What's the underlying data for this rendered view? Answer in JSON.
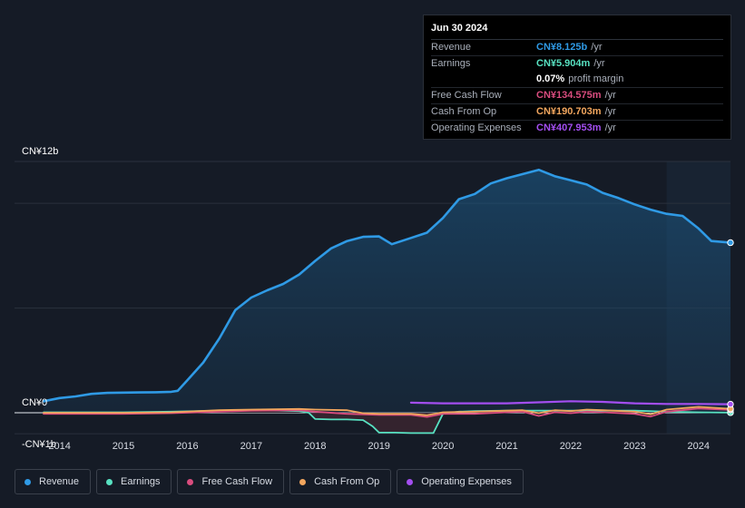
{
  "tooltip": {
    "date": "Jun 30 2024",
    "rows": [
      {
        "label": "Revenue",
        "value": "CN¥8.125b",
        "unit": "/yr",
        "color": "#2f9ae5"
      },
      {
        "label": "Earnings",
        "value": "CN¥5.904m",
        "unit": "/yr",
        "color": "#58e1c1"
      },
      {
        "label": "",
        "value": "0.07%",
        "unit": "profit margin",
        "color": "#ffffff"
      },
      {
        "label": "Free Cash Flow",
        "value": "CN¥134.575m",
        "unit": "/yr",
        "color": "#d94c7e"
      },
      {
        "label": "Cash From Op",
        "value": "CN¥190.703m",
        "unit": "/yr",
        "color": "#f2a65e"
      },
      {
        "label": "Operating Expenses",
        "value": "CN¥407.953m",
        "unit": "/yr",
        "color": "#a34ef0"
      }
    ]
  },
  "legend": [
    {
      "label": "Revenue",
      "color": "#2f9ae5",
      "icon": "revenue-dot-icon"
    },
    {
      "label": "Earnings",
      "color": "#58e1c1",
      "icon": "earnings-dot-icon"
    },
    {
      "label": "Free Cash Flow",
      "color": "#d94c7e",
      "icon": "fcf-dot-icon"
    },
    {
      "label": "Cash From Op",
      "color": "#f2a65e",
      "icon": "cfo-dot-icon"
    },
    {
      "label": "Operating Expenses",
      "color": "#a34ef0",
      "icon": "opex-dot-icon"
    }
  ],
  "chart_data": {
    "type": "line",
    "title": "",
    "xlabel": "",
    "ylabel": "",
    "units": "CN¥ billions",
    "ylim": [
      -1,
      12
    ],
    "xlim": [
      2013.75,
      2024.5
    ],
    "y_tick_labels": [
      {
        "value": 12,
        "label": "CN¥12b"
      },
      {
        "value": 0,
        "label": "CN¥0"
      },
      {
        "value": -1,
        "label": "-CN¥1b"
      }
    ],
    "x_tick_labels": [
      "2014",
      "2015",
      "2016",
      "2017",
      "2018",
      "2019",
      "2020",
      "2021",
      "2022",
      "2023",
      "2024"
    ],
    "x_ticks": [
      2014,
      2015,
      2016,
      2017,
      2018,
      2019,
      2020,
      2021,
      2022,
      2023,
      2024
    ],
    "gridlines": [
      12,
      10,
      5,
      0
    ],
    "forecast_shade_from": 2023.5,
    "series": [
      {
        "name": "Revenue",
        "color": "#2f9ae5",
        "area": true,
        "points": [
          [
            2013.75,
            0.55
          ],
          [
            2014.0,
            0.7
          ],
          [
            2014.25,
            0.78
          ],
          [
            2014.5,
            0.9
          ],
          [
            2014.75,
            0.95
          ],
          [
            2015.0,
            0.96
          ],
          [
            2015.25,
            0.97
          ],
          [
            2015.5,
            0.98
          ],
          [
            2015.75,
            1.0
          ],
          [
            2015.85,
            1.05
          ],
          [
            2016.0,
            1.55
          ],
          [
            2016.25,
            2.4
          ],
          [
            2016.5,
            3.55
          ],
          [
            2016.75,
            4.9
          ],
          [
            2017.0,
            5.5
          ],
          [
            2017.25,
            5.85
          ],
          [
            2017.5,
            6.15
          ],
          [
            2017.75,
            6.6
          ],
          [
            2018.0,
            7.25
          ],
          [
            2018.25,
            7.85
          ],
          [
            2018.5,
            8.2
          ],
          [
            2018.75,
            8.4
          ],
          [
            2019.0,
            8.42
          ],
          [
            2019.2,
            8.05
          ],
          [
            2019.5,
            8.35
          ],
          [
            2019.75,
            8.6
          ],
          [
            2020.0,
            9.3
          ],
          [
            2020.25,
            10.2
          ],
          [
            2020.5,
            10.45
          ],
          [
            2020.75,
            10.95
          ],
          [
            2021.0,
            11.2
          ],
          [
            2021.25,
            11.4
          ],
          [
            2021.5,
            11.6
          ],
          [
            2021.75,
            11.3
          ],
          [
            2022.0,
            11.1
          ],
          [
            2022.25,
            10.9
          ],
          [
            2022.5,
            10.5
          ],
          [
            2022.75,
            10.25
          ],
          [
            2023.0,
            9.95
          ],
          [
            2023.25,
            9.7
          ],
          [
            2023.5,
            9.5
          ],
          [
            2023.75,
            9.4
          ],
          [
            2024.0,
            8.8
          ],
          [
            2024.2,
            8.2
          ],
          [
            2024.5,
            8.125
          ]
        ]
      },
      {
        "name": "Earnings",
        "color": "#58e1c1",
        "area": true,
        "points": [
          [
            2013.75,
            0.02
          ],
          [
            2015.0,
            0.02
          ],
          [
            2015.75,
            0.05
          ],
          [
            2016.0,
            0.07
          ],
          [
            2016.5,
            0.1
          ],
          [
            2016.75,
            0.12
          ],
          [
            2017.25,
            0.12
          ],
          [
            2017.75,
            0.08
          ],
          [
            2017.9,
            0.0
          ],
          [
            2018.0,
            -0.3
          ],
          [
            2018.25,
            -0.32
          ],
          [
            2018.5,
            -0.32
          ],
          [
            2018.75,
            -0.35
          ],
          [
            2018.9,
            -0.65
          ],
          [
            2019.0,
            -0.95
          ],
          [
            2019.25,
            -0.95
          ],
          [
            2019.5,
            -0.97
          ],
          [
            2019.85,
            -0.97
          ],
          [
            2020.0,
            -0.05
          ],
          [
            2020.25,
            0.05
          ],
          [
            2020.5,
            0.08
          ],
          [
            2021.0,
            0.1
          ],
          [
            2021.5,
            0.1
          ],
          [
            2022.0,
            0.1
          ],
          [
            2022.5,
            0.1
          ],
          [
            2023.0,
            0.1
          ],
          [
            2023.5,
            0.05
          ],
          [
            2024.0,
            0.02
          ],
          [
            2024.5,
            0.006
          ]
        ]
      },
      {
        "name": "Free Cash Flow",
        "color": "#d94c7e",
        "area": false,
        "points": [
          [
            2013.75,
            -0.05
          ],
          [
            2015.0,
            -0.05
          ],
          [
            2015.75,
            -0.02
          ],
          [
            2016.5,
            0.05
          ],
          [
            2017.0,
            0.1
          ],
          [
            2017.75,
            0.12
          ],
          [
            2018.0,
            0.05
          ],
          [
            2018.5,
            -0.05
          ],
          [
            2019.0,
            -0.1
          ],
          [
            2019.5,
            -0.1
          ],
          [
            2019.75,
            -0.2
          ],
          [
            2020.0,
            -0.05
          ],
          [
            2020.5,
            -0.05
          ],
          [
            2021.0,
            0.02
          ],
          [
            2021.25,
            0.05
          ],
          [
            2021.5,
            -0.15
          ],
          [
            2021.75,
            0.02
          ],
          [
            2022.0,
            -0.02
          ],
          [
            2022.25,
            0.05
          ],
          [
            2022.5,
            0.02
          ],
          [
            2023.0,
            -0.05
          ],
          [
            2023.25,
            -0.18
          ],
          [
            2023.5,
            0.05
          ],
          [
            2024.0,
            0.2
          ],
          [
            2024.5,
            0.135
          ]
        ]
      },
      {
        "name": "Cash From Op",
        "color": "#f2a65e",
        "area": false,
        "points": [
          [
            2013.75,
            0.0
          ],
          [
            2015.0,
            0.0
          ],
          [
            2015.75,
            0.02
          ],
          [
            2016.5,
            0.12
          ],
          [
            2017.0,
            0.15
          ],
          [
            2017.75,
            0.18
          ],
          [
            2018.0,
            0.15
          ],
          [
            2018.5,
            0.12
          ],
          [
            2018.75,
            -0.02
          ],
          [
            2019.0,
            -0.05
          ],
          [
            2019.5,
            -0.05
          ],
          [
            2019.75,
            -0.12
          ],
          [
            2020.0,
            0.02
          ],
          [
            2020.5,
            0.05
          ],
          [
            2021.0,
            0.1
          ],
          [
            2021.25,
            0.12
          ],
          [
            2021.5,
            -0.02
          ],
          [
            2021.75,
            0.12
          ],
          [
            2022.0,
            0.08
          ],
          [
            2022.25,
            0.15
          ],
          [
            2022.5,
            0.12
          ],
          [
            2023.0,
            0.05
          ],
          [
            2023.25,
            -0.08
          ],
          [
            2023.5,
            0.15
          ],
          [
            2024.0,
            0.28
          ],
          [
            2024.5,
            0.19
          ]
        ]
      },
      {
        "name": "Operating Expenses",
        "color": "#a34ef0",
        "area": false,
        "points": [
          [
            2019.5,
            0.48
          ],
          [
            2020.0,
            0.45
          ],
          [
            2020.5,
            0.45
          ],
          [
            2021.0,
            0.45
          ],
          [
            2021.5,
            0.5
          ],
          [
            2022.0,
            0.55
          ],
          [
            2022.5,
            0.52
          ],
          [
            2023.0,
            0.45
          ],
          [
            2023.5,
            0.42
          ],
          [
            2024.0,
            0.42
          ],
          [
            2024.5,
            0.408
          ]
        ]
      }
    ]
  }
}
